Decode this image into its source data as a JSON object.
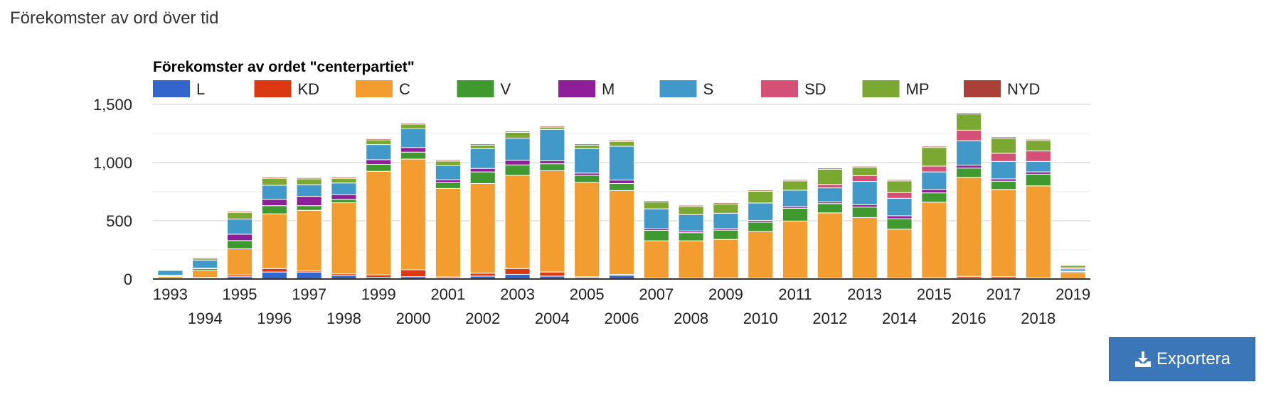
{
  "page": {
    "title": "Förekomster av ord över tid",
    "export_label": "Exportera"
  },
  "chart_data": {
    "type": "bar",
    "stacked": true,
    "title": "Förekomster av ordet \"centerpartiet\"",
    "xlabel": "",
    "ylabel": "",
    "ylim": [
      0,
      1500
    ],
    "yticks": [
      0,
      500,
      1000,
      1500
    ],
    "ytick_labels": [
      "0",
      "500",
      "1,000",
      "1,500"
    ],
    "grid": true,
    "legend_position": "top",
    "categories": [
      "1993",
      "1994",
      "1995",
      "1996",
      "1997",
      "1998",
      "1999",
      "2000",
      "2001",
      "2002",
      "2003",
      "2004",
      "2005",
      "2006",
      "2007",
      "2008",
      "2009",
      "2010",
      "2011",
      "2012",
      "2013",
      "2014",
      "2015",
      "2016",
      "2017",
      "2018",
      "2019"
    ],
    "series": [
      {
        "name": "L",
        "color": "#3366cc",
        "values": [
          5,
          8,
          20,
          60,
          60,
          30,
          15,
          20,
          8,
          25,
          40,
          25,
          12,
          30,
          5,
          5,
          5,
          5,
          5,
          5,
          5,
          5,
          5,
          8,
          5,
          5,
          3
        ]
      },
      {
        "name": "KD",
        "color": "#dc3912",
        "values": [
          3,
          5,
          15,
          30,
          10,
          15,
          20,
          60,
          10,
          25,
          50,
          35,
          8,
          10,
          3,
          3,
          5,
          3,
          3,
          3,
          3,
          3,
          5,
          15,
          15,
          5,
          2
        ]
      },
      {
        "name": "C",
        "color": "#f39c2f",
        "values": [
          15,
          60,
          225,
          470,
          520,
          610,
          890,
          950,
          760,
          770,
          800,
          870,
          810,
          720,
          320,
          320,
          330,
          400,
          490,
          560,
          520,
          420,
          650,
          850,
          750,
          790,
          50
        ]
      },
      {
        "name": "V",
        "color": "#3e9a2e",
        "values": [
          8,
          15,
          70,
          70,
          40,
          30,
          60,
          60,
          50,
          100,
          90,
          60,
          60,
          60,
          90,
          70,
          80,
          80,
          110,
          80,
          90,
          90,
          80,
          80,
          70,
          100,
          10
        ]
      },
      {
        "name": "M",
        "color": "#8e1f99",
        "values": [
          2,
          5,
          55,
          55,
          80,
          40,
          40,
          40,
          25,
          30,
          40,
          25,
          20,
          30,
          15,
          15,
          15,
          15,
          15,
          15,
          20,
          25,
          30,
          25,
          20,
          20,
          2
        ]
      },
      {
        "name": "S",
        "color": "#4099c9",
        "values": [
          40,
          70,
          130,
          120,
          100,
          100,
          130,
          160,
          120,
          170,
          190,
          270,
          210,
          290,
          170,
          140,
          130,
          150,
          140,
          120,
          200,
          150,
          150,
          210,
          150,
          90,
          20
        ]
      },
      {
        "name": "SD",
        "color": "#d55077",
        "values": [
          0,
          0,
          0,
          0,
          0,
          0,
          0,
          0,
          0,
          0,
          0,
          0,
          0,
          0,
          0,
          0,
          0,
          0,
          0,
          30,
          50,
          50,
          50,
          90,
          70,
          90,
          10
        ]
      },
      {
        "name": "MP",
        "color": "#7ba830",
        "values": [
          8,
          15,
          55,
          60,
          50,
          40,
          40,
          40,
          40,
          30,
          50,
          20,
          30,
          40,
          60,
          70,
          80,
          100,
          80,
          130,
          70,
          100,
          160,
          140,
          130,
          90,
          20
        ]
      },
      {
        "name": "NYD",
        "color": "#ab4036",
        "values": [
          3,
          8,
          10,
          10,
          10,
          10,
          10,
          10,
          10,
          10,
          10,
          10,
          10,
          10,
          10,
          10,
          10,
          10,
          10,
          10,
          10,
          10,
          10,
          10,
          10,
          10,
          3
        ]
      }
    ]
  }
}
